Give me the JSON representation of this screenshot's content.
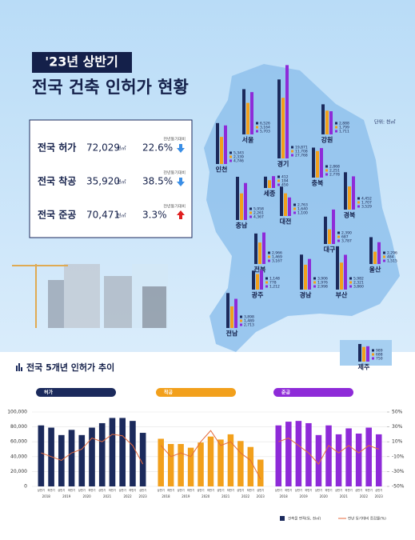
{
  "header": {
    "badge": "'23년 상반기",
    "title": "전국 건축 인허가 현황"
  },
  "summary": {
    "items": [
      {
        "label": "전국 허가",
        "value": "72,029",
        "unit": "천㎡",
        "compare": "전년동기대비",
        "change": "22.6%",
        "direction": "down"
      },
      {
        "label": "전국 착공",
        "value": "35,920",
        "unit": "천㎡",
        "compare": "전년동기대비",
        "change": "38.5%",
        "direction": "down"
      },
      {
        "label": "전국 준공",
        "value": "70,471",
        "unit": "천㎡",
        "compare": "전년동기대비",
        "change": "3.3%",
        "direction": "up"
      }
    ]
  },
  "map": {
    "unit": "단위: 천㎡",
    "colors": [
      "#1b2a5c",
      "#f2a01c",
      "#8e2bd8"
    ],
    "regions": [
      {
        "name": "서울",
        "values": [
          6526,
          3164,
          5703
        ],
        "value_labels": [
          "6,526",
          "3,164",
          "5,703"
        ]
      },
      {
        "name": "경기",
        "values": [
          19871,
          11708,
          27768
        ],
        "value_labels": [
          "19,871",
          "11,708",
          "27,768"
        ]
      },
      {
        "name": "인천",
        "values": [
          5343,
          2339,
          4746
        ],
        "value_labels": [
          "5,343",
          "2,339",
          "4,746"
        ]
      },
      {
        "name": "강원",
        "values": [
          2888,
          1799,
          1711
        ],
        "value_labels": [
          "2,888",
          "1,799",
          "1,711"
        ]
      },
      {
        "name": "충북",
        "values": [
          2868,
          2251,
          2778
        ],
        "value_labels": [
          "2,868",
          "2,251",
          "2,778"
        ]
      },
      {
        "name": "세종",
        "values": [
          412,
          194,
          450
        ],
        "value_labels": [
          "412",
          "194",
          "450"
        ]
      },
      {
        "name": "충남",
        "values": [
          5958,
          2261,
          4367
        ],
        "value_labels": [
          "5,958",
          "2,261",
          "4,367"
        ]
      },
      {
        "name": "대전",
        "values": [
          2763,
          1640,
          1100
        ],
        "value_labels": [
          "2,763",
          "1,640",
          "1,100"
        ]
      },
      {
        "name": "경북",
        "values": [
          4452,
          1707,
          3529
        ],
        "value_labels": [
          "4,452",
          "1,707",
          "3,529"
        ]
      },
      {
        "name": "대구",
        "values": [
          2390,
          687,
          3787
        ],
        "value_labels": [
          "2,390",
          "687",
          "3,787"
        ]
      },
      {
        "name": "울산",
        "values": [
          2296,
          484,
          1515
        ],
        "value_labels": [
          "2,296",
          "484",
          "1,515"
        ]
      },
      {
        "name": "전북",
        "values": [
          2966,
          1469,
          3167
        ],
        "value_labels": [
          "2,966",
          "1,469",
          "3,167"
        ]
      },
      {
        "name": "광주",
        "values": [
          1148,
          778,
          1212
        ],
        "value_labels": [
          "1,148",
          "778",
          "1,212"
        ]
      },
      {
        "name": "경남",
        "values": [
          3906,
          1976,
          2998
        ],
        "value_labels": [
          "3,906",
          "1,976",
          "2,998"
        ]
      },
      {
        "name": "부산",
        "values": [
          5982,
          2321,
          3860
        ],
        "value_labels": [
          "5,982",
          "2,321",
          "3,860"
        ]
      },
      {
        "name": "전남",
        "values": [
          3898,
          1489,
          2713
        ],
        "value_labels": [
          "3,898",
          "1,489",
          "2,713"
        ]
      },
      {
        "name": "제주",
        "values": [
          989,
          688,
          750
        ],
        "value_labels": [
          "989",
          "688",
          "750"
        ]
      }
    ]
  },
  "section_title": "전국 5개년 인허가 추이",
  "legend": [
    {
      "label": "건축물 면적(동, 천㎡)",
      "color": "#1b2a5c"
    },
    {
      "label": "전년 동기대비 증감률(%)",
      "color": "#e46a3c"
    }
  ],
  "chart_data": [
    {
      "type": "bar",
      "title": "허가",
      "categories": [
        "상반기",
        "하반기",
        "상반기",
        "하반기",
        "상반기",
        "하반기",
        "상반기",
        "하반기",
        "상반기",
        "하반기",
        "상반기"
      ],
      "groups": [
        "2018",
        "2019",
        "2020",
        "2021",
        "2022",
        "2023"
      ],
      "series": [
        {
          "color": "#1b2a5c",
          "values": [
            82000,
            79000,
            69000,
            76000,
            69000,
            79000,
            85000,
            92000,
            92000,
            88000,
            72000
          ]
        },
        {
          "color": "#e46a3c",
          "axis": "y2",
          "values": [
            -5,
            -10,
            -15,
            -5,
            0,
            15,
            10,
            20,
            18,
            5,
            -20
          ]
        }
      ],
      "ylim": [
        0,
        100000
      ],
      "y2lim": [
        -50,
        50
      ],
      "yticks": [
        0,
        {
          "value": 20000,
          "label": "20,000"
        },
        {
          "value": 40000,
          "label": "40,000"
        },
        {
          "value": 60000,
          "label": "60,000"
        },
        {
          "value": 80000,
          "label": "80,000"
        },
        {
          "value": 100000,
          "label": "100,000"
        }
      ]
    },
    {
      "type": "bar",
      "title": "착공",
      "categories": [
        "상반기",
        "하반기",
        "상반기",
        "하반기",
        "상반기",
        "하반기",
        "상반기",
        "하반기",
        "상반기",
        "하반기",
        "상반기"
      ],
      "groups": [
        "2018",
        "2019",
        "2020",
        "2021",
        "2022",
        "2023"
      ],
      "series": [
        {
          "color": "#f2a01c",
          "values": [
            64000,
            57000,
            57000,
            52000,
            59000,
            67000,
            63000,
            70000,
            61000,
            53000,
            36000
          ]
        },
        {
          "color": "#e46a3c",
          "axis": "y2",
          "values": [
            5,
            -10,
            -5,
            -10,
            10,
            25,
            5,
            10,
            -5,
            -15,
            -40
          ]
        }
      ],
      "ylim": [
        0,
        100000
      ],
      "y2lim": [
        -50,
        50
      ]
    },
    {
      "type": "bar",
      "title": "준공",
      "categories": [
        "상반기",
        "하반기",
        "상반기",
        "하반기",
        "상반기",
        "하반기",
        "상반기",
        "하반기",
        "상반기",
        "하반기",
        "상반기"
      ],
      "groups": [
        "2018",
        "2019",
        "2020",
        "2021",
        "2022",
        "2023"
      ],
      "series": [
        {
          "color": "#8e2bd8",
          "values": [
            82000,
            87000,
            88000,
            85000,
            69000,
            82000,
            70000,
            78000,
            71000,
            79000,
            70000
          ]
        },
        {
          "color": "#e46a3c",
          "axis": "y2",
          "values": [
            10,
            15,
            5,
            -5,
            -20,
            5,
            -5,
            5,
            -5,
            5,
            0
          ]
        }
      ],
      "ylim": [
        0,
        100000
      ],
      "y2lim": [
        -50,
        50
      ],
      "y2ticks": [
        {
          "value": 50,
          "label": "50%"
        },
        {
          "value": 30,
          "label": "30%"
        },
        {
          "value": 10,
          "label": "10%"
        },
        {
          "value": -10,
          "label": "-10%"
        },
        {
          "value": -30,
          "label": "-30%"
        },
        {
          "value": -50,
          "label": "-50%"
        }
      ]
    }
  ]
}
